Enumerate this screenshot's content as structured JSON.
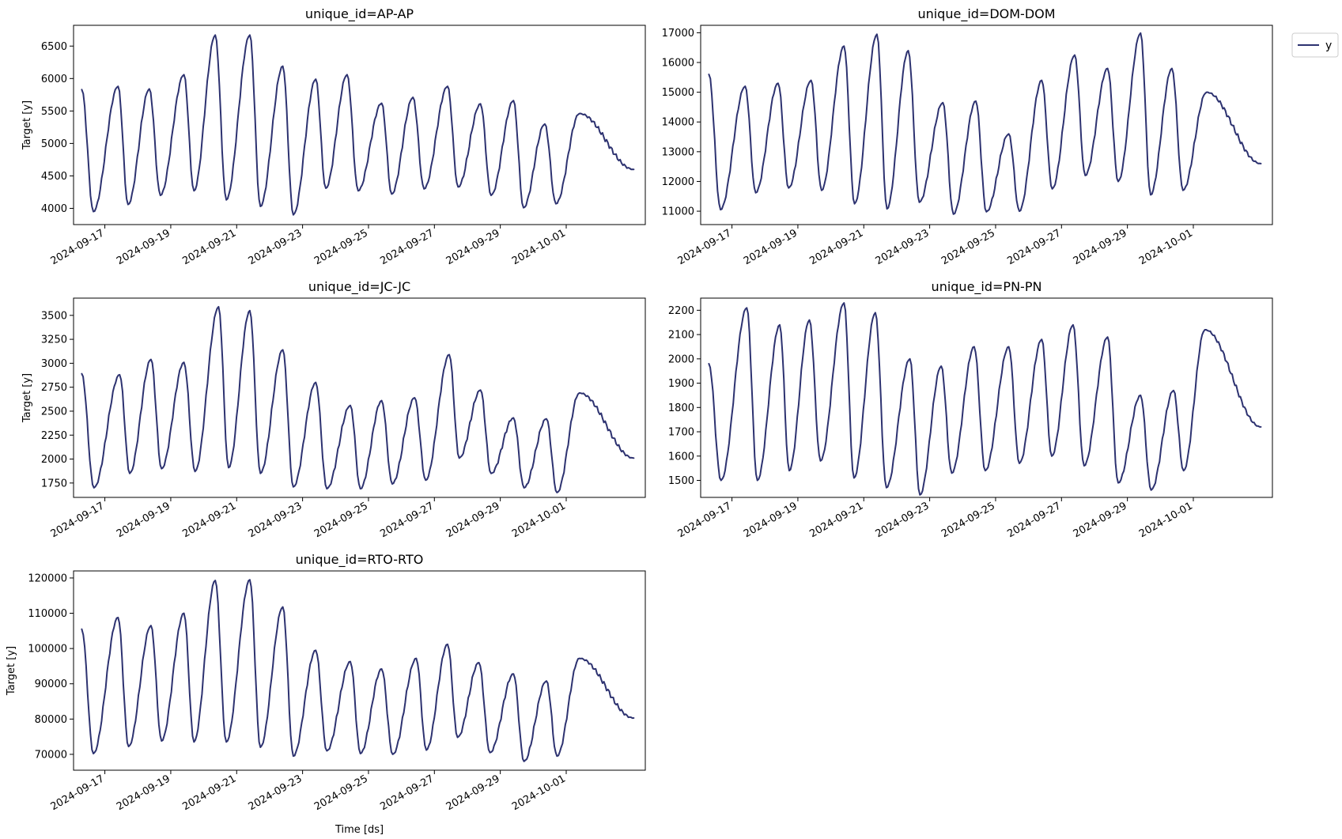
{
  "colors": {
    "series": "#2d3270"
  },
  "legend": {
    "label": "y",
    "placement": "top-right, outside"
  },
  "chart_data": [
    {
      "type": "line",
      "title": "unique_id=AP-AP",
      "xlabel": "",
      "ylabel": "Target [y]",
      "x_start": "2024-09-16 04:00",
      "x_end": "2024-10-01 23:00",
      "xlim_days": [
        -0.95,
        16.4
      ],
      "ylim": [
        3750,
        6820
      ],
      "yticks": [
        4000,
        4500,
        5000,
        5500,
        6000,
        6500
      ],
      "xtick_labels": [
        "2024-09-17",
        "2024-09-19",
        "2024-09-21",
        "2024-09-23",
        "2024-09-25",
        "2024-09-27",
        "2024-09-29",
        "2024-10-01"
      ],
      "x_peak_days": [
        -0.7,
        0.4,
        1.35,
        2.4,
        3.35,
        4.4,
        5.4,
        6.4,
        7.35,
        8.4,
        9.35,
        10.4,
        11.4,
        12.4,
        13.35,
        14.4,
        15.3
      ],
      "peaks": [
        5830,
        5880,
        5840,
        6060,
        6670,
        6670,
        6190,
        5990,
        6060,
        5620,
        5710,
        5880,
        5610,
        5660,
        5300,
        5460
      ],
      "troughs": [
        3950,
        4060,
        4200,
        4270,
        4130,
        4030,
        3900,
        4310,
        4270,
        4220,
        4300,
        4330,
        4200,
        4010,
        4070
      ],
      "last_value": 4600,
      "series": [
        {
          "name": "y"
        }
      ]
    },
    {
      "type": "line",
      "title": "unique_id=DOM-DOM",
      "xlabel": "",
      "ylabel": "",
      "x_start": "2024-09-16 04:00",
      "x_end": "2024-10-01 23:00",
      "xlim_days": [
        -0.95,
        16.4
      ],
      "ylim": [
        10550,
        17250
      ],
      "yticks": [
        11000,
        12000,
        13000,
        14000,
        15000,
        16000,
        17000
      ],
      "xtick_labels": [
        "2024-09-17",
        "2024-09-19",
        "2024-09-21",
        "2024-09-23",
        "2024-09-25",
        "2024-09-27",
        "2024-09-29",
        "2024-10-01"
      ],
      "x_peak_days": [
        -0.7,
        0.4,
        1.4,
        2.4,
        3.4,
        4.4,
        5.35,
        6.4,
        7.4,
        8.4,
        9.4,
        10.4,
        11.4,
        12.4,
        13.35,
        14.4,
        15.35
      ],
      "peaks": [
        15600,
        15200,
        15300,
        15400,
        16550,
        16950,
        16400,
        14650,
        14700,
        13600,
        15400,
        16250,
        15800,
        16990,
        15800,
        15000
      ],
      "troughs": [
        11050,
        11620,
        11780,
        11700,
        11250,
        11080,
        11300,
        10900,
        10980,
        11000,
        11750,
        12200,
        12000,
        11550,
        11700
      ],
      "last_value": 12600,
      "series": [
        {
          "name": "y"
        }
      ]
    },
    {
      "type": "line",
      "title": "unique_id=JC-JC",
      "xlabel": "",
      "ylabel": "Target [y]",
      "x_start": "2024-09-16 04:00",
      "x_end": "2024-10-01 23:00",
      "xlim_days": [
        -0.95,
        16.4
      ],
      "ylim": [
        1600,
        3680
      ],
      "yticks": [
        1750,
        2000,
        2250,
        2500,
        2750,
        3000,
        3250,
        3500
      ],
      "xtick_labels": [
        "2024-09-17",
        "2024-09-19",
        "2024-09-21",
        "2024-09-23",
        "2024-09-25",
        "2024-09-27",
        "2024-09-29",
        "2024-10-01"
      ],
      "x_peak_days": [
        -0.7,
        0.45,
        1.4,
        2.4,
        3.45,
        4.4,
        5.4,
        6.4,
        7.45,
        8.4,
        9.4,
        10.45,
        11.4,
        12.4,
        13.4,
        14.4,
        15.3
      ],
      "peaks": [
        2890,
        2880,
        3040,
        3010,
        3590,
        3550,
        3140,
        2800,
        2560,
        2610,
        2640,
        3090,
        2720,
        2430,
        2420,
        2690
      ],
      "troughs": [
        1700,
        1850,
        1900,
        1870,
        1910,
        1850,
        1710,
        1690,
        1690,
        1740,
        1780,
        2010,
        1850,
        1700,
        1650
      ],
      "last_value": 2010,
      "series": [
        {
          "name": "y"
        }
      ]
    },
    {
      "type": "line",
      "title": "unique_id=PN-PN",
      "xlabel": "",
      "ylabel": "",
      "x_start": "2024-09-16 04:00",
      "x_end": "2024-10-01 23:00",
      "xlim_days": [
        -0.95,
        16.4
      ],
      "ylim": [
        1430,
        2250
      ],
      "yticks": [
        1500,
        1600,
        1700,
        1800,
        1900,
        2000,
        2100,
        2200
      ],
      "xtick_labels": [
        "2024-09-17",
        "2024-09-19",
        "2024-09-21",
        "2024-09-23",
        "2024-09-25",
        "2024-09-27",
        "2024-09-29",
        "2024-10-01"
      ],
      "x_peak_days": [
        -0.7,
        0.45,
        1.45,
        2.35,
        3.4,
        4.35,
        5.4,
        6.35,
        7.35,
        8.4,
        9.4,
        10.35,
        11.4,
        12.4,
        13.4,
        14.35,
        15.2
      ],
      "peaks": [
        1980,
        2210,
        2140,
        2160,
        2230,
        2190,
        2000,
        1970,
        2050,
        2050,
        2080,
        2140,
        2090,
        1850,
        1870,
        2120
      ],
      "troughs": [
        1500,
        1500,
        1540,
        1580,
        1510,
        1470,
        1440,
        1530,
        1540,
        1570,
        1600,
        1560,
        1490,
        1460,
        1540
      ],
      "last_value": 1720,
      "series": [
        {
          "name": "y"
        }
      ]
    },
    {
      "type": "line",
      "title": "unique_id=RTO-RTO",
      "xlabel": "Time [ds]",
      "ylabel": "Target [y]",
      "x_start": "2024-09-16 04:00",
      "x_end": "2024-10-01 23:00",
      "xlim_days": [
        -0.95,
        16.4
      ],
      "ylim": [
        65500,
        122000
      ],
      "yticks": [
        70000,
        80000,
        90000,
        100000,
        110000,
        120000
      ],
      "xtick_labels": [
        "2024-09-17",
        "2024-09-19",
        "2024-09-21",
        "2024-09-23",
        "2024-09-25",
        "2024-09-27",
        "2024-09-29",
        "2024-10-01"
      ],
      "x_peak_days": [
        -0.7,
        0.4,
        1.4,
        2.4,
        3.35,
        4.4,
        5.4,
        6.4,
        7.45,
        8.4,
        9.45,
        10.4,
        11.35,
        12.4,
        13.4,
        14.4,
        15.3
      ],
      "peaks": [
        105500,
        108800,
        106500,
        110000,
        119300,
        119500,
        111800,
        99500,
        96300,
        94200,
        97200,
        101200,
        96000,
        92800,
        90800,
        97200
      ],
      "troughs": [
        70200,
        72200,
        73800,
        73500,
        73500,
        72000,
        69500,
        71000,
        70200,
        70000,
        71200,
        74800,
        70500,
        68000,
        69500
      ],
      "last_value": 80300,
      "series": [
        {
          "name": "y"
        }
      ]
    }
  ]
}
